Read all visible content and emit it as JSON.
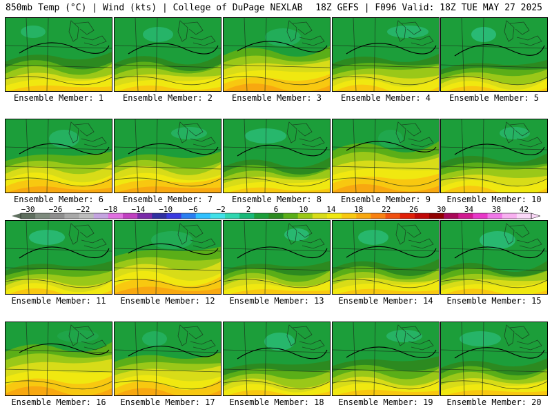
{
  "header": {
    "left": "850mb Temp (°C) | Wind (kts) | College of DuPage NEXLAB",
    "right": "18Z GEFS | F096 Valid: 18Z TUE MAY 27 2025"
  },
  "panels": [
    {
      "label": "Ensemble Member: 1",
      "warmth": 0.45
    },
    {
      "label": "Ensemble Member: 2",
      "warmth": 0.4
    },
    {
      "label": "Ensemble Member: 3",
      "warmth": 0.6
    },
    {
      "label": "Ensemble Member: 4",
      "warmth": 0.4
    },
    {
      "label": "Ensemble Member: 5",
      "warmth": 0.25
    },
    {
      "label": "Ensemble Member: 6",
      "warmth": 0.5
    },
    {
      "label": "Ensemble Member: 7",
      "warmth": 0.5
    },
    {
      "label": "Ensemble Member: 8",
      "warmth": 0.35
    },
    {
      "label": "Ensemble Member: 9",
      "warmth": 0.75
    },
    {
      "label": "Ensemble Member: 10",
      "warmth": 0.45
    },
    {
      "label": "Ensemble Member: 11",
      "warmth": 0.3
    },
    {
      "label": "Ensemble Member: 12",
      "warmth": 0.65
    },
    {
      "label": "Ensemble Member: 13",
      "warmth": 0.3
    },
    {
      "label": "Ensemble Member: 14",
      "warmth": 0.35
    },
    {
      "label": "Ensemble Member: 15",
      "warmth": 0.3
    },
    {
      "label": "Ensemble Member: 16",
      "warmth": 0.8
    },
    {
      "label": "Ensemble Member: 17",
      "warmth": 0.55
    },
    {
      "label": "Ensemble Member: 18",
      "warmth": 0.35
    },
    {
      "label": "Ensemble Member: 19",
      "warmth": 0.45
    },
    {
      "label": "Ensemble Member: 20",
      "warmth": 0.4
    }
  ],
  "colorbar": {
    "labels": [
      "−30",
      "−26",
      "−22",
      "−18",
      "−14",
      "−10",
      "−6",
      "−2",
      "2",
      "6",
      "10",
      "14",
      "18",
      "22",
      "26",
      "30",
      "34",
      "38",
      "42"
    ],
    "colors": [
      "#5e6e5e",
      "#7d8a7d",
      "#8e8e8e",
      "#a8a8a8",
      "#bcbcbc",
      "#c4a4e0",
      "#e070e0",
      "#c040c0",
      "#7a2aa8",
      "#3030a0",
      "#3a3ae0",
      "#2a7ef0",
      "#30c0ff",
      "#40e0e8",
      "#30d6b0",
      "#18b878",
      "#1c9e3a",
      "#2c8a20",
      "#5aae18",
      "#9ac818",
      "#d8dc18",
      "#f0e810",
      "#f8c810",
      "#f8a810",
      "#f88010",
      "#f05010",
      "#e02008",
      "#c00808",
      "#900000",
      "#a80858",
      "#d01890",
      "#e838c8",
      "#f078e8",
      "#f8b0f0",
      "#fbd8f8"
    ]
  }
}
